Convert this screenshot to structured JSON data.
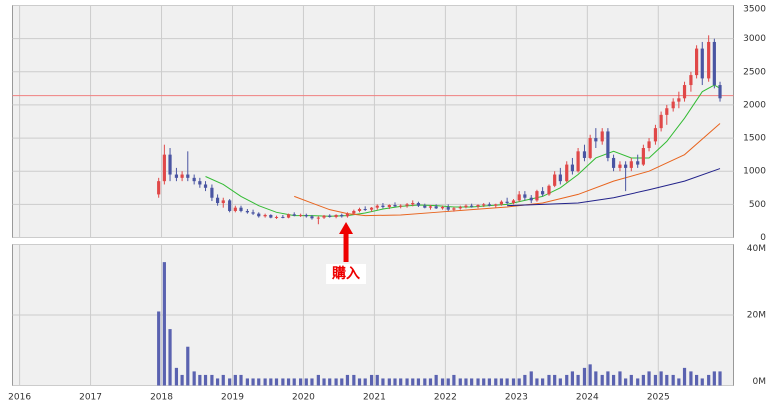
{
  "chart_data": {
    "type": "candlestick",
    "grid": true,
    "xlim": [
      2015.9,
      2026.06
    ],
    "xticks": [
      2016,
      2017,
      2018,
      2019,
      2020,
      2021,
      2022,
      2023,
      2024,
      2025
    ],
    "ylim": [
      0,
      3500
    ],
    "yticks": [
      0,
      500,
      1000,
      1500,
      2000,
      2500,
      3000,
      3500
    ],
    "up_color": "#e04848",
    "down_color": "#4a55a2",
    "x": [
      2017.96,
      2018.04,
      2018.12,
      2018.21,
      2018.29,
      2018.37,
      2018.46,
      2018.54,
      2018.62,
      2018.71,
      2018.79,
      2018.87,
      2018.96,
      2019.04,
      2019.12,
      2019.21,
      2019.29,
      2019.37,
      2019.46,
      2019.54,
      2019.62,
      2019.71,
      2019.79,
      2019.87,
      2019.96,
      2020.04,
      2020.12,
      2020.21,
      2020.29,
      2020.37,
      2020.46,
      2020.54,
      2020.62,
      2020.71,
      2020.79,
      2020.87,
      2020.96,
      2021.04,
      2021.12,
      2021.21,
      2021.29,
      2021.37,
      2021.46,
      2021.54,
      2021.62,
      2021.71,
      2021.79,
      2021.87,
      2021.96,
      2022.04,
      2022.12,
      2022.21,
      2022.29,
      2022.37,
      2022.46,
      2022.54,
      2022.62,
      2022.71,
      2022.79,
      2022.87,
      2022.96,
      2023.04,
      2023.12,
      2023.21,
      2023.29,
      2023.37,
      2023.46,
      2023.54,
      2023.62,
      2023.71,
      2023.79,
      2023.87,
      2023.96,
      2024.04,
      2024.12,
      2024.21,
      2024.29,
      2024.37,
      2024.46,
      2024.54,
      2024.62,
      2024.71,
      2024.79,
      2024.87,
      2024.96,
      2025.04,
      2025.12,
      2025.21,
      2025.29,
      2025.37,
      2025.46,
      2025.54,
      2025.62,
      2025.71,
      2025.79,
      2025.87
    ],
    "open": [
      650,
      850,
      1250,
      950,
      900,
      950,
      900,
      850,
      800,
      750,
      600,
      520,
      560,
      400,
      450,
      400,
      380,
      360,
      320,
      340,
      300,
      310,
      300,
      350,
      330,
      340,
      320,
      290,
      300,
      330,
      310,
      340,
      320,
      360,
      400,
      430,
      420,
      450,
      480,
      460,
      490,
      470,
      480,
      500,
      520,
      480,
      450,
      470,
      440,
      460,
      420,
      440,
      460,
      480,
      470,
      490,
      500,
      480,
      500,
      540,
      520,
      560,
      650,
      600,
      560,
      700,
      650,
      780,
      950,
      850,
      1100,
      1000,
      1300,
      1200,
      1500,
      1450,
      1600,
      1200,
      1050,
      1100,
      1050,
      1150,
      1100,
      1350,
      1450,
      1650,
      1850,
      1950,
      2050,
      2100,
      2300,
      2450,
      2850,
      2400,
      2950,
      2300
    ],
    "high": [
      900,
      1400,
      1350,
      1050,
      1000,
      1300,
      950,
      900,
      850,
      800,
      650,
      600,
      580,
      480,
      480,
      430,
      420,
      380,
      360,
      350,
      330,
      340,
      360,
      380,
      360,
      360,
      340,
      320,
      340,
      350,
      350,
      360,
      380,
      420,
      450,
      470,
      460,
      500,
      520,
      500,
      530,
      500,
      520,
      560,
      540,
      510,
      490,
      500,
      480,
      500,
      460,
      480,
      500,
      510,
      500,
      520,
      530,
      510,
      560,
      600,
      580,
      700,
      700,
      640,
      720,
      760,
      800,
      1000,
      1050,
      1150,
      1200,
      1350,
      1400,
      1550,
      1650,
      1650,
      1650,
      1250,
      1150,
      1150,
      1200,
      1250,
      1400,
      1500,
      1700,
      1900,
      2000,
      2100,
      2200,
      2350,
      2500,
      2900,
      2950,
      3050,
      3000,
      2350
    ],
    "low": [
      600,
      800,
      850,
      850,
      850,
      850,
      800,
      750,
      700,
      550,
      480,
      450,
      380,
      380,
      380,
      360,
      340,
      300,
      300,
      290,
      280,
      290,
      290,
      320,
      310,
      300,
      270,
      200,
      280,
      300,
      290,
      300,
      300,
      340,
      380,
      400,
      390,
      420,
      440,
      430,
      460,
      440,
      450,
      470,
      460,
      440,
      420,
      430,
      420,
      400,
      390,
      420,
      440,
      450,
      440,
      460,
      470,
      450,
      480,
      500,
      500,
      540,
      560,
      520,
      540,
      620,
      630,
      760,
      800,
      830,
      950,
      980,
      1150,
      1180,
      1350,
      1400,
      1150,
      1000,
      1000,
      700,
      1000,
      1050,
      1080,
      1300,
      1400,
      1600,
      1700,
      1900,
      1950,
      2050,
      2200,
      2400,
      2300,
      2350,
      2250,
      2050
    ],
    "close": [
      850,
      1250,
      950,
      900,
      950,
      900,
      850,
      800,
      750,
      600,
      520,
      560,
      400,
      450,
      400,
      380,
      360,
      320,
      340,
      300,
      310,
      300,
      350,
      330,
      340,
      320,
      290,
      300,
      330,
      310,
      340,
      320,
      360,
      400,
      430,
      420,
      450,
      480,
      460,
      490,
      470,
      480,
      500,
      520,
      480,
      450,
      470,
      440,
      460,
      420,
      440,
      460,
      480,
      470,
      490,
      500,
      480,
      500,
      540,
      520,
      560,
      650,
      600,
      560,
      700,
      650,
      780,
      950,
      850,
      1100,
      1000,
      1300,
      1200,
      1500,
      1450,
      1600,
      1200,
      1050,
      1100,
      1050,
      1150,
      1100,
      1350,
      1450,
      1650,
      1850,
      1950,
      2050,
      2100,
      2300,
      2450,
      2850,
      2400,
      2950,
      2300,
      2100
    ],
    "moving_averages": [
      {
        "color": "#33bb33",
        "x": [
          2018.62,
          2018.87,
          2019.12,
          2019.37,
          2019.62,
          2019.87,
          2020.12,
          2020.37,
          2020.62,
          2020.87,
          2021.12,
          2021.37,
          2021.62,
          2021.87,
          2022.12,
          2022.37,
          2022.62,
          2022.87,
          2023.12,
          2023.37,
          2023.62,
          2023.87,
          2024.12,
          2024.37,
          2024.62,
          2024.87,
          2025.12,
          2025.37,
          2025.62,
          2025.79,
          2025.87
        ],
        "values": [
          920,
          800,
          620,
          480,
          380,
          330,
          330,
          320,
          330,
          370,
          430,
          470,
          490,
          480,
          460,
          460,
          480,
          500,
          560,
          620,
          750,
          950,
          1200,
          1300,
          1200,
          1200,
          1450,
          1800,
          2200,
          2300,
          2250
        ]
      },
      {
        "color": "#e8641e",
        "x": [
          2019.87,
          2020.12,
          2020.37,
          2020.62,
          2020.87,
          2021.37,
          2021.87,
          2022.37,
          2022.87,
          2023.37,
          2023.87,
          2024.37,
          2024.87,
          2025.37,
          2025.87
        ],
        "values": [
          620,
          520,
          420,
          360,
          330,
          340,
          380,
          420,
          460,
          520,
          650,
          850,
          1000,
          1250,
          1720
        ]
      },
      {
        "color": "#22228a",
        "x": [
          2022.87,
          2023.37,
          2023.87,
          2024.37,
          2024.87,
          2025.37,
          2025.87
        ],
        "values": [
          480,
          500,
          520,
          600,
          720,
          850,
          1040
        ]
      }
    ],
    "hline": {
      "value": 2140,
      "color": "#f08080"
    },
    "annotation": {
      "text": "購入",
      "x": 2020.6,
      "color": "#ee0000"
    },
    "volume": {
      "color": "#5a62b0",
      "ylim": [
        0,
        40
      ],
      "yticks": [
        {
          "value": 0,
          "label": "0M"
        },
        {
          "value": 20,
          "label": "20M"
        },
        {
          "value": 40,
          "label": "40M"
        }
      ],
      "values": [
        21,
        35,
        16,
        5,
        3,
        11,
        4,
        3,
        3,
        3,
        2,
        3,
        2,
        3,
        3,
        2,
        2,
        2,
        2,
        2,
        2,
        2,
        2,
        2,
        2,
        2,
        2,
        3,
        2,
        2,
        2,
        2,
        3,
        3,
        2,
        2,
        3,
        3,
        2,
        2,
        2,
        2,
        2,
        2,
        2,
        2,
        2,
        3,
        2,
        2,
        3,
        2,
        2,
        2,
        2,
        2,
        2,
        2,
        2,
        2,
        2,
        2,
        3,
        4,
        2,
        2,
        3,
        3,
        2,
        3,
        4,
        3,
        5,
        6,
        4,
        3,
        4,
        3,
        4,
        2,
        3,
        2,
        3,
        4,
        3,
        4,
        3,
        3,
        2,
        5,
        4,
        3,
        2,
        3,
        4,
        4
      ]
    }
  }
}
